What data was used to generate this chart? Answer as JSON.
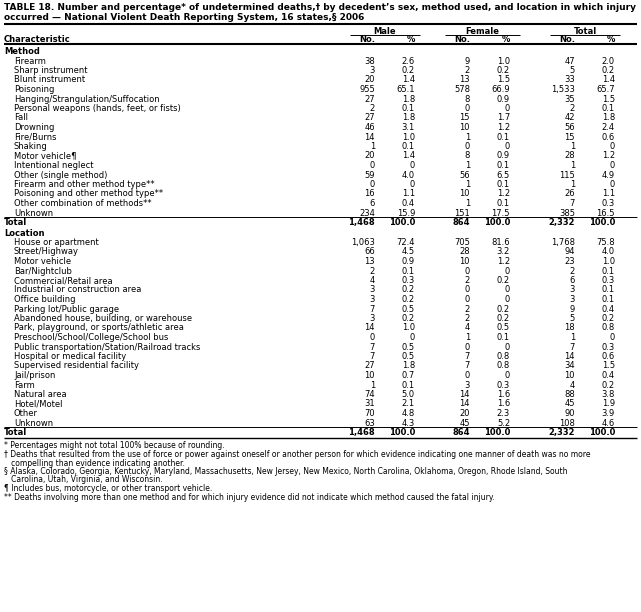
{
  "title_line1": "TABLE 18. Number and percentage* of undetermined deaths,† by decedent’s sex, method used, and location in which injury",
  "title_line2": "occurred — National Violent Death Reporting System, 16 states,§ 2006",
  "col_headers": [
    "Male",
    "Female",
    "Total"
  ],
  "sub_headers": [
    "No.",
    "%",
    "No.",
    "%",
    "No.",
    "%"
  ],
  "char_label": "Characteristic",
  "sections": [
    {
      "name": "Method",
      "rows": [
        [
          "Firearm",
          "38",
          "2.6",
          "9",
          "1.0",
          "47",
          "2.0"
        ],
        [
          "Sharp instrument",
          "3",
          "0.2",
          "2",
          "0.2",
          "5",
          "0.2"
        ],
        [
          "Blunt instrument",
          "20",
          "1.4",
          "13",
          "1.5",
          "33",
          "1.4"
        ],
        [
          "Poisoning",
          "955",
          "65.1",
          "578",
          "66.9",
          "1,533",
          "65.7"
        ],
        [
          "Hanging/Strangulation/Suffocation",
          "27",
          "1.8",
          "8",
          "0.9",
          "35",
          "1.5"
        ],
        [
          "Personal weapons (hands, feet, or fists)",
          "2",
          "0.1",
          "0",
          "0",
          "2",
          "0.1"
        ],
        [
          "Fall",
          "27",
          "1.8",
          "15",
          "1.7",
          "42",
          "1.8"
        ],
        [
          "Drowning",
          "46",
          "3.1",
          "10",
          "1.2",
          "56",
          "2.4"
        ],
        [
          "Fire/Burns",
          "14",
          "1.0",
          "1",
          "0.1",
          "15",
          "0.6"
        ],
        [
          "Shaking",
          "1",
          "0.1",
          "0",
          "0",
          "1",
          "0"
        ],
        [
          "Motor vehicle¶",
          "20",
          "1.4",
          "8",
          "0.9",
          "28",
          "1.2"
        ],
        [
          "Intentional neglect",
          "0",
          "0",
          "1",
          "0.1",
          "1",
          "0"
        ],
        [
          "Other (single method)",
          "59",
          "4.0",
          "56",
          "6.5",
          "115",
          "4.9"
        ],
        [
          "Firearm and other method type**",
          "0",
          "0",
          "1",
          "0.1",
          "1",
          "0"
        ],
        [
          "Poisoning and other method type**",
          "16",
          "1.1",
          "10",
          "1.2",
          "26",
          "1.1"
        ],
        [
          "Other combination of methods**",
          "6",
          "0.4",
          "1",
          "0.1",
          "7",
          "0.3"
        ],
        [
          "Unknown",
          "234",
          "15.9",
          "151",
          "17.5",
          "385",
          "16.5"
        ]
      ],
      "total": [
        "Total",
        "1,468",
        "100.0",
        "864",
        "100.0",
        "2,332",
        "100.0"
      ]
    },
    {
      "name": "Location",
      "rows": [
        [
          "House or apartment",
          "1,063",
          "72.4",
          "705",
          "81.6",
          "1,768",
          "75.8"
        ],
        [
          "Street/Highway",
          "66",
          "4.5",
          "28",
          "3.2",
          "94",
          "4.0"
        ],
        [
          "Motor vehicle",
          "13",
          "0.9",
          "10",
          "1.2",
          "23",
          "1.0"
        ],
        [
          "Bar/Nightclub",
          "2",
          "0.1",
          "0",
          "0",
          "2",
          "0.1"
        ],
        [
          "Commercial/Retail area",
          "4",
          "0.3",
          "2",
          "0.2",
          "6",
          "0.3"
        ],
        [
          "Industrial or construction area",
          "3",
          "0.2",
          "0",
          "0",
          "3",
          "0.1"
        ],
        [
          "Office building",
          "3",
          "0.2",
          "0",
          "0",
          "3",
          "0.1"
        ],
        [
          "Parking lot/Public garage",
          "7",
          "0.5",
          "2",
          "0.2",
          "9",
          "0.4"
        ],
        [
          "Abandoned house, building, or warehouse",
          "3",
          "0.2",
          "2",
          "0.2",
          "5",
          "0.2"
        ],
        [
          "Park, playground, or sports/athletic area",
          "14",
          "1.0",
          "4",
          "0.5",
          "18",
          "0.8"
        ],
        [
          "Preschool/School/College/School bus",
          "0",
          "0",
          "1",
          "0.1",
          "1",
          "0"
        ],
        [
          "Public transportation/Station/Railroad tracks",
          "7",
          "0.5",
          "0",
          "0",
          "7",
          "0.3"
        ],
        [
          "Hospital or medical facility",
          "7",
          "0.5",
          "7",
          "0.8",
          "14",
          "0.6"
        ],
        [
          "Supervised residential facility",
          "27",
          "1.8",
          "7",
          "0.8",
          "34",
          "1.5"
        ],
        [
          "Jail/prison",
          "10",
          "0.7",
          "0",
          "0",
          "10",
          "0.4"
        ],
        [
          "Farm",
          "1",
          "0.1",
          "3",
          "0.3",
          "4",
          "0.2"
        ],
        [
          "Natural area",
          "74",
          "5.0",
          "14",
          "1.6",
          "88",
          "3.8"
        ],
        [
          "Hotel/Motel",
          "31",
          "2.1",
          "14",
          "1.6",
          "45",
          "1.9"
        ],
        [
          "Other",
          "70",
          "4.8",
          "20",
          "2.3",
          "90",
          "3.9"
        ],
        [
          "Unknown",
          "63",
          "4.3",
          "45",
          "5.2",
          "108",
          "4.6"
        ]
      ],
      "total": [
        "Total",
        "1,468",
        "100.0",
        "864",
        "100.0",
        "2,332",
        "100.0"
      ]
    }
  ],
  "footnotes": [
    "* Percentages might not total 100% because of rounding.",
    "† Deaths that resulted from the use of force or power against oneself or another person for which evidence indicating one manner of death was no more",
    "   compelling than evidence indicating another.",
    "§ Alaska, Colorado, Georgia, Kentucky, Maryland, Massachusetts, New Jersey, New Mexico, North Carolina, Oklahoma, Oregon, Rhode Island, South",
    "   Carolina, Utah, Virginia, and Wisconsin.",
    "¶ Includes bus, motorcycle, or other transport vehicle.",
    "** Deaths involving more than one method and for which injury evidence did not indicate which method caused the fatal injury."
  ],
  "font_size": 6.0,
  "title_font_size": 6.5,
  "footnote_font_size": 5.5
}
